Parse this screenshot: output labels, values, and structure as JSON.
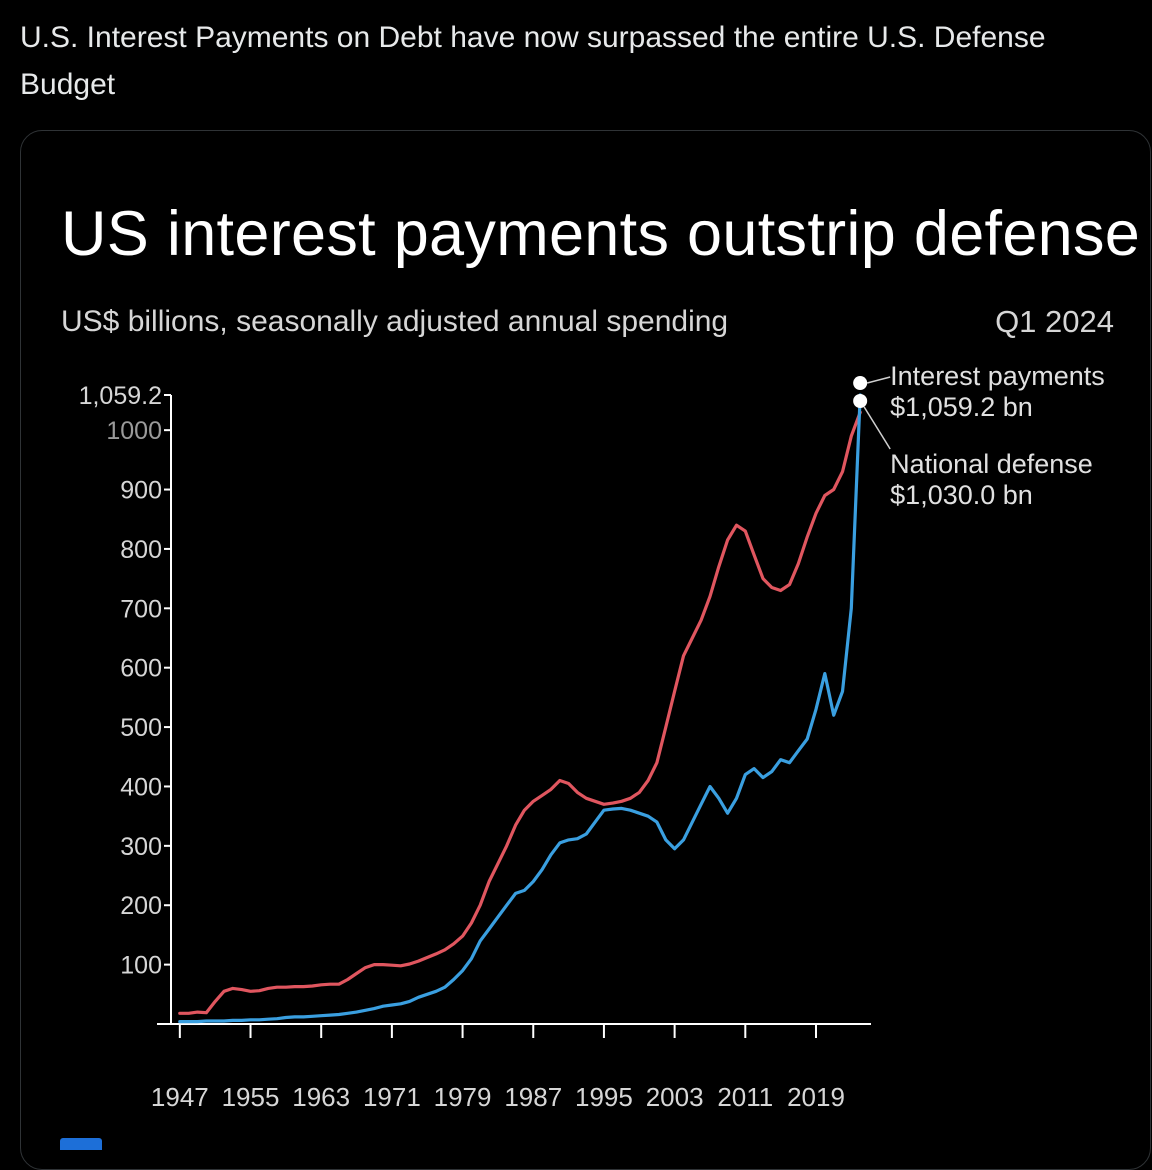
{
  "post": {
    "text": "U.S. Interest Payments on Debt have now surpassed the entire U.S. Defense Budget"
  },
  "colors": {
    "interest": "#e0565f",
    "defense": "#3a9fe0",
    "background": "#000000",
    "axis": "#ffffff"
  },
  "chart_data": {
    "type": "line",
    "title": "US interest payments outstrip defense",
    "subtitle": "US$ billions, seasonally adjusted annual spending",
    "period": "Q1 2024",
    "xlabel": "",
    "ylabel": "",
    "xlim": [
      1946,
      2025
    ],
    "ylim": [
      0,
      1059.2
    ],
    "x_ticks": [
      1947,
      1955,
      1963,
      1971,
      1979,
      1987,
      1995,
      2003,
      2011,
      2019
    ],
    "x_tick_labels": [
      "1947",
      "1955",
      "1963",
      "1971",
      "1979",
      "1987",
      "1995",
      "2003",
      "2011",
      "2019"
    ],
    "y_ticks": [
      100,
      200,
      300,
      400,
      500,
      600,
      700,
      800,
      900,
      1000,
      1059.2
    ],
    "y_tick_labels": [
      "100",
      "200",
      "300",
      "400",
      "500",
      "600",
      "700",
      "800",
      "900",
      "1000",
      "1,059.2"
    ],
    "legend": "right, annotated at line ends",
    "annotations": [
      {
        "label": "Interest payments",
        "value_text": "$1,059.2 bn",
        "series": "Interest payments",
        "x": 2024,
        "y": 1059.2
      },
      {
        "label": "National defense",
        "value_text": "$1,030.0 bn",
        "series": "National defense",
        "x": 2024,
        "y": 1030.0
      }
    ],
    "series": [
      {
        "name": "National defense",
        "color": "#e0565f",
        "x": [
          1947,
          1948,
          1949,
          1950,
          1951,
          1952,
          1953,
          1954,
          1955,
          1956,
          1957,
          1958,
          1959,
          1960,
          1961,
          1962,
          1963,
          1964,
          1965,
          1966,
          1967,
          1968,
          1969,
          1970,
          1971,
          1972,
          1973,
          1974,
          1975,
          1976,
          1977,
          1978,
          1979,
          1980,
          1981,
          1982,
          1983,
          1984,
          1985,
          1986,
          1987,
          1988,
          1989,
          1990,
          1991,
          1992,
          1993,
          1994,
          1995,
          1996,
          1997,
          1998,
          1999,
          2000,
          2001,
          2002,
          2003,
          2004,
          2005,
          2006,
          2007,
          2008,
          2009,
          2010,
          2011,
          2012,
          2013,
          2014,
          2015,
          2016,
          2017,
          2018,
          2019,
          2020,
          2021,
          2022,
          2023,
          2024
        ],
        "values": [
          18,
          18,
          20,
          19,
          38,
          55,
          60,
          58,
          55,
          56,
          60,
          62,
          62,
          63,
          63,
          64,
          66,
          67,
          67,
          75,
          85,
          95,
          100,
          100,
          99,
          98,
          101,
          106,
          112,
          118,
          125,
          135,
          148,
          170,
          200,
          240,
          270,
          300,
          335,
          360,
          375,
          385,
          395,
          410,
          405,
          390,
          380,
          375,
          370,
          372,
          375,
          380,
          390,
          410,
          440,
          500,
          560,
          620,
          650,
          680,
          720,
          770,
          815,
          840,
          830,
          790,
          750,
          735,
          730,
          740,
          775,
          820,
          860,
          890,
          900,
          930,
          990,
          1030
        ]
      },
      {
        "name": "Interest payments",
        "color": "#3a9fe0",
        "x": [
          1947,
          1948,
          1949,
          1950,
          1951,
          1952,
          1953,
          1954,
          1955,
          1956,
          1957,
          1958,
          1959,
          1960,
          1961,
          1962,
          1963,
          1964,
          1965,
          1966,
          1967,
          1968,
          1969,
          1970,
          1971,
          1972,
          1973,
          1974,
          1975,
          1976,
          1977,
          1978,
          1979,
          1980,
          1981,
          1982,
          1983,
          1984,
          1985,
          1986,
          1987,
          1988,
          1989,
          1990,
          1991,
          1992,
          1993,
          1994,
          1995,
          1996,
          1997,
          1998,
          1999,
          2000,
          2001,
          2002,
          2003,
          2004,
          2005,
          2006,
          2007,
          2008,
          2009,
          2010,
          2011,
          2012,
          2013,
          2014,
          2015,
          2016,
          2017,
          2018,
          2019,
          2020,
          2021,
          2022,
          2023,
          2024
        ],
        "values": [
          4,
          4,
          4,
          5,
          5,
          5,
          6,
          6,
          7,
          7,
          8,
          9,
          11,
          12,
          12,
          13,
          14,
          15,
          16,
          18,
          20,
          23,
          26,
          30,
          32,
          34,
          38,
          45,
          50,
          55,
          62,
          75,
          90,
          110,
          140,
          160,
          180,
          200,
          220,
          225,
          240,
          260,
          285,
          305,
          310,
          312,
          320,
          340,
          360,
          362,
          363,
          360,
          355,
          350,
          340,
          310,
          295,
          310,
          340,
          370,
          400,
          380,
          355,
          380,
          420,
          430,
          415,
          425,
          445,
          440,
          460,
          480,
          530,
          590,
          520,
          560,
          700,
          1059.2
        ]
      }
    ]
  }
}
